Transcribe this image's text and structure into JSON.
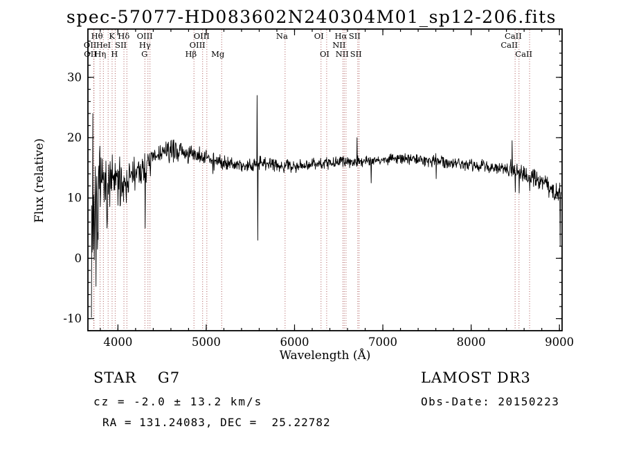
{
  "title": "spec-57077-HD083602N240304M01_sp12-206.fits",
  "footer": {
    "object_class": "STAR    G7",
    "survey": "LAMOST DR3",
    "cz": "cz = -2.0 ± 13.2 km/s",
    "obs_date": "Obs-Date: 20150223",
    "ra_dec": "RA = 131.24083, DEC =  25.22782"
  },
  "colors": {
    "background": "#ffffff",
    "spectrum": "#000000",
    "marker_line": "#a04040",
    "text": "#000000"
  },
  "chart_data": {
    "type": "line",
    "title": "spec-57077-HD083602N240304M01_sp12-206.fits",
    "xlabel": "Wavelength (Å)",
    "ylabel": "Flux (relative)",
    "xlim": [
      3660,
      9030
    ],
    "ylim": [
      -12,
      38
    ],
    "xticks": [
      4000,
      5000,
      6000,
      7000,
      8000,
      9000
    ],
    "yticks": [
      -10,
      0,
      10,
      20,
      30
    ],
    "x_minor_step": 200,
    "y_minor_step": 2,
    "grid": false,
    "series_name": "flux",
    "wavelength_range": [
      3700,
      9020
    ],
    "sampling_step": 4,
    "noise_seed": 7,
    "continuum": [
      [
        3700,
        5
      ],
      [
        3760,
        9
      ],
      [
        3830,
        11
      ],
      [
        3900,
        12.5
      ],
      [
        4000,
        12.5
      ],
      [
        4100,
        13
      ],
      [
        4200,
        14
      ],
      [
        4300,
        15
      ],
      [
        4400,
        16.5
      ],
      [
        4500,
        17.5
      ],
      [
        4650,
        18
      ],
      [
        4800,
        17.2
      ],
      [
        4950,
        16.8
      ],
      [
        5100,
        16.2
      ],
      [
        5250,
        15.8
      ],
      [
        5450,
        15.4
      ],
      [
        5600,
        15.8
      ],
      [
        5750,
        15.6
      ],
      [
        5900,
        15.3
      ],
      [
        6100,
        15.6
      ],
      [
        6300,
        15.7
      ],
      [
        6500,
        15.9
      ],
      [
        6700,
        16.1
      ],
      [
        6900,
        16.3
      ],
      [
        7100,
        16.5
      ],
      [
        7400,
        16.4
      ],
      [
        7700,
        16.0
      ],
      [
        8000,
        15.5
      ],
      [
        8200,
        15.1
      ],
      [
        8400,
        14.8
      ],
      [
        8550,
        14.3
      ],
      [
        8700,
        13.4
      ],
      [
        8850,
        12.2
      ],
      [
        8950,
        11.2
      ],
      [
        9020,
        10.3
      ]
    ],
    "noise_envelope": [
      [
        3700,
        16
      ],
      [
        3760,
        11
      ],
      [
        3830,
        7.5
      ],
      [
        3900,
        6
      ],
      [
        4000,
        5
      ],
      [
        4100,
        4
      ],
      [
        4250,
        3
      ],
      [
        4400,
        2.5
      ],
      [
        4600,
        2.1
      ],
      [
        4900,
        1.8
      ],
      [
        5200,
        1.5
      ],
      [
        5600,
        1.4
      ],
      [
        6000,
        1.2
      ],
      [
        6500,
        1.1
      ],
      [
        7000,
        1.0
      ],
      [
        7500,
        1.1
      ],
      [
        8000,
        1.2
      ],
      [
        8400,
        1.4
      ],
      [
        8700,
        1.7
      ],
      [
        9000,
        2.2
      ],
      [
        9020,
        2.4
      ]
    ],
    "spikes": [
      [
        3715,
        24
      ],
      [
        4307,
        5
      ],
      [
        5577,
        27
      ],
      [
        5585,
        3
      ],
      [
        6708,
        20
      ],
      [
        6867,
        12.5
      ],
      [
        7605,
        13.2
      ],
      [
        8465,
        19.5
      ],
      [
        8498,
        11
      ],
      [
        8542,
        10.8
      ],
      [
        8662,
        11.2
      ],
      [
        9008,
        2
      ]
    ],
    "spectral_lines": [
      {
        "wavelength": 3726,
        "label": "OII",
        "row": 2
      },
      {
        "wavelength": 3729,
        "label": "OII",
        "row": 3
      },
      {
        "wavelength": 3798,
        "label": "Hθ",
        "row": 1
      },
      {
        "wavelength": 3835,
        "label": "Hη",
        "row": 3
      },
      {
        "wavelength": 3889,
        "label": "HeI",
        "row": 2
      },
      {
        "wavelength": 3934,
        "label": "K",
        "row": 1
      },
      {
        "wavelength": 3969,
        "label": "H",
        "row": 3
      },
      {
        "wavelength": 4068,
        "label": "SII",
        "row": 2
      },
      {
        "wavelength": 4101,
        "label": "Hδ",
        "row": 1
      },
      {
        "wavelength": 4305,
        "label": "G",
        "row": 3
      },
      {
        "wavelength": 4340,
        "label": "Hγ",
        "row": 2
      },
      {
        "wavelength": 4363,
        "label": "OIII",
        "row": 1
      },
      {
        "wavelength": 4861,
        "label": "Hβ",
        "row": 3
      },
      {
        "wavelength": 4959,
        "label": "OIII",
        "row": 2
      },
      {
        "wavelength": 5007,
        "label": "OIII",
        "row": 1
      },
      {
        "wavelength": 5175,
        "label": "Mg",
        "row": 3
      },
      {
        "wavelength": 5893,
        "label": "Na",
        "row": 1
      },
      {
        "wavelength": 6300,
        "label": "OI",
        "row": 1
      },
      {
        "wavelength": 6364,
        "label": "OI",
        "row": 3
      },
      {
        "wavelength": 6548,
        "label": "NII",
        "row": 2
      },
      {
        "wavelength": 6563,
        "label": "Hα",
        "row": 1
      },
      {
        "wavelength": 6583,
        "label": "NII",
        "row": 3
      },
      {
        "wavelength": 6716,
        "label": "SII",
        "row": 1
      },
      {
        "wavelength": 6731,
        "label": "SII",
        "row": 3
      },
      {
        "wavelength": 8498,
        "label": "CaII",
        "row": 2
      },
      {
        "wavelength": 8542,
        "label": "CaII",
        "row": 1
      },
      {
        "wavelength": 8662,
        "label": "CaII",
        "row": 3
      }
    ]
  }
}
